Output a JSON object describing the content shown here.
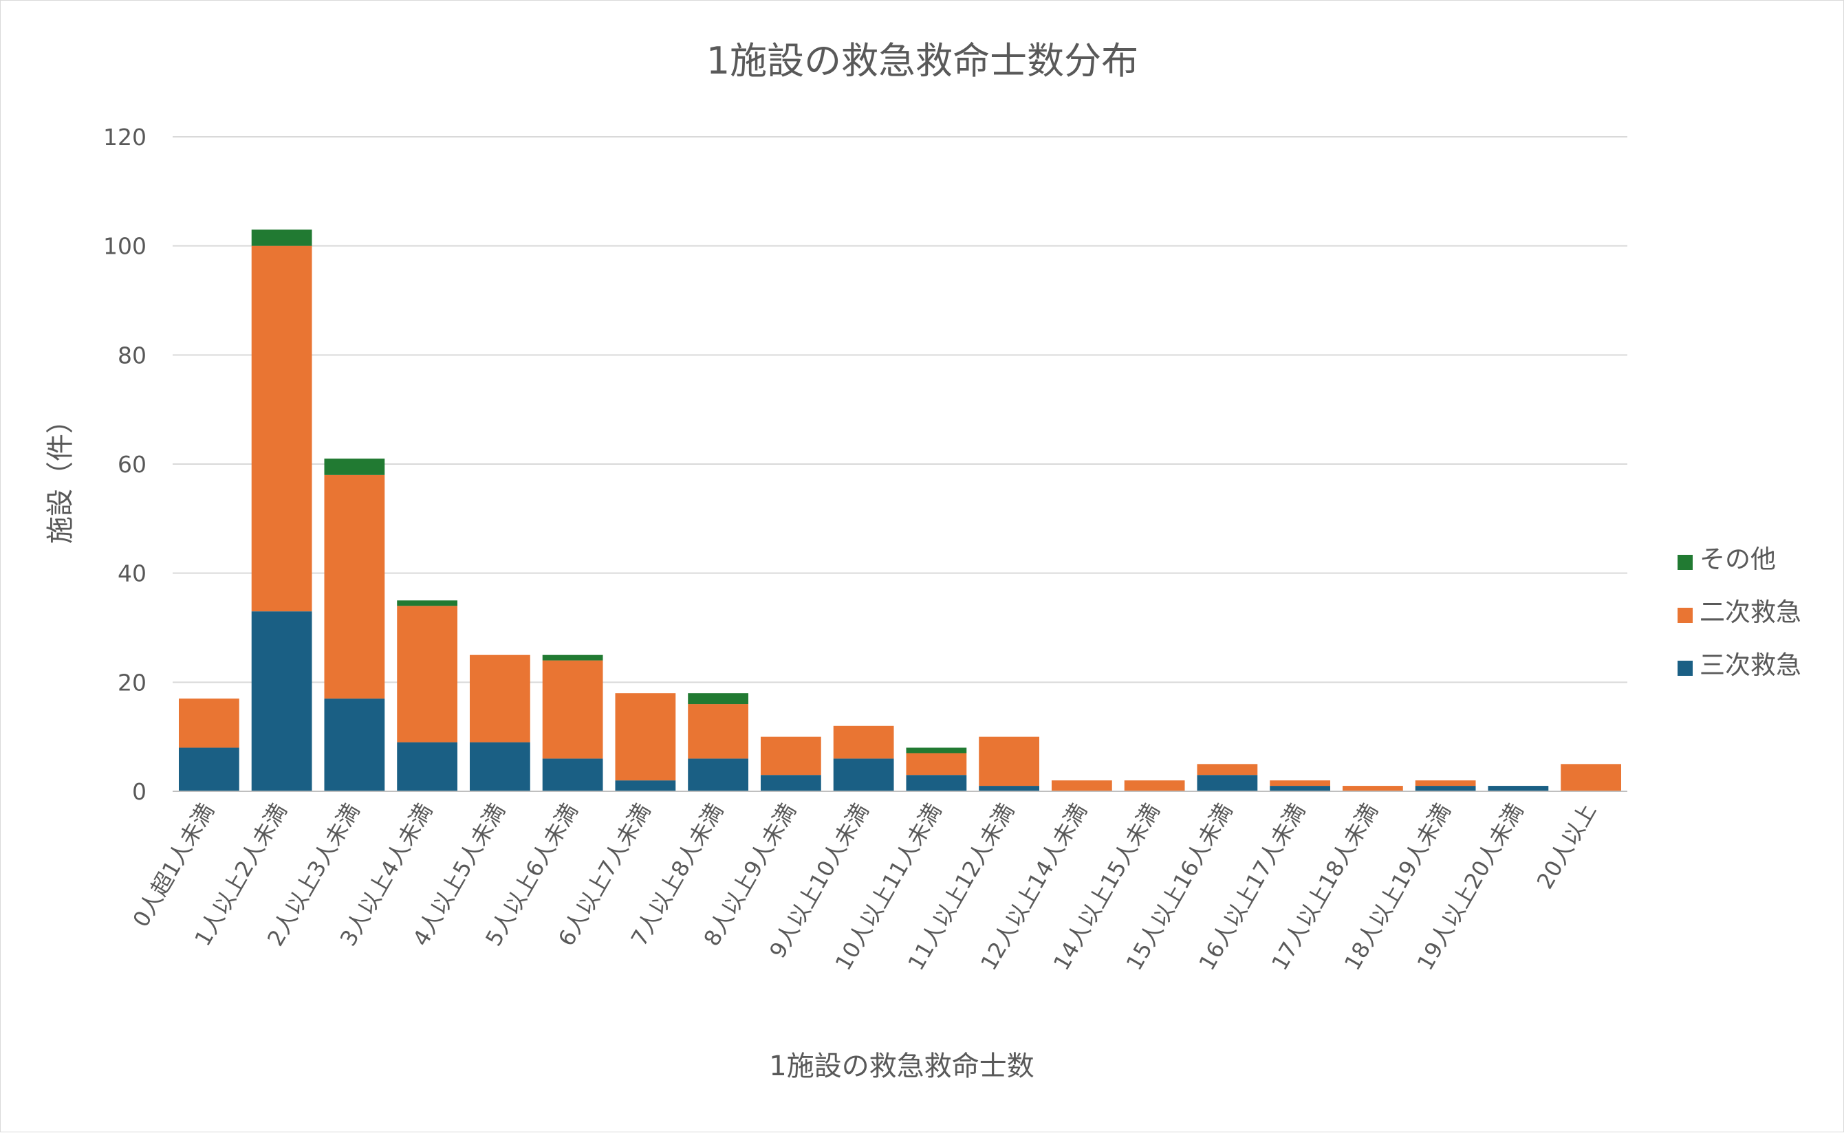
{
  "chart_data": {
    "type": "bar",
    "stacked": true,
    "title": "1施設の救急救命士数分布",
    "xlabel": "1施設の救急救命士数",
    "ylabel": "施設（件）",
    "ylim": [
      0,
      120
    ],
    "yticks": [
      0,
      20,
      40,
      60,
      80,
      100,
      120
    ],
    "grid": true,
    "legend_position": "right",
    "categories": [
      "0人超1人未満",
      "1人以上2人未満",
      "2人以上3人未満",
      "3人以上4人未満",
      "4人以上5人未満",
      "5人以上6人未満",
      "6人以上7人未満",
      "7人以上8人未満",
      "8人以上9人未満",
      "9人以上10人未満",
      "10人以上11人未満",
      "11人以上12人未満",
      "12人以上14人未満",
      "14人以上15人未満",
      "15人以上16人未満",
      "16人以上17人未満",
      "17人以上18人未満",
      "18人以上19人未満",
      "19人以上20人未満",
      "20人以上"
    ],
    "series": [
      {
        "name": "三次救急",
        "color": "#1a5f84",
        "values": [
          8,
          33,
          17,
          9,
          9,
          6,
          2,
          6,
          3,
          6,
          3,
          1,
          0,
          0,
          3,
          1,
          0,
          1,
          1,
          0
        ]
      },
      {
        "name": "二次救急",
        "color": "#e97533",
        "values": [
          9,
          67,
          41,
          25,
          16,
          18,
          16,
          10,
          7,
          6,
          4,
          9,
          2,
          2,
          2,
          1,
          1,
          1,
          0,
          5
        ]
      },
      {
        "name": "その他",
        "color": "#217a32",
        "values": [
          0,
          3,
          3,
          1,
          0,
          1,
          0,
          2,
          0,
          0,
          1,
          0,
          0,
          0,
          0,
          0,
          0,
          0,
          0,
          0
        ]
      }
    ],
    "legend_order": [
      "その他",
      "二次救急",
      "三次救急"
    ]
  }
}
